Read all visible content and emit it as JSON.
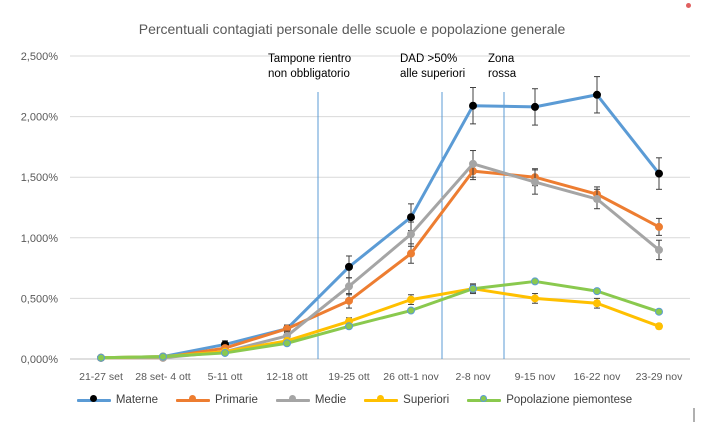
{
  "chart_data": {
    "type": "line",
    "title": "Percentuali contagiati personale delle scuole e popolazione generale",
    "xlabel": "",
    "ylabel": "",
    "ylim": [
      0,
      2.5
    ],
    "yticks": [
      "0,000%",
      "0,500%",
      "1,000%",
      "1,500%",
      "2,000%",
      "2,500%"
    ],
    "categories": [
      "21-27 set",
      "28 set- 4 ott",
      "5-11 ott",
      "12-18 ott",
      "19-25 ott",
      "26 ott-1 nov",
      "2-8 nov",
      "9-15 nov",
      "16-22 nov",
      "23-29 nov"
    ],
    "grid": "horizontal",
    "legend": "bottom",
    "series": [
      {
        "name": "Materne",
        "color": "#5b9bd5",
        "marker": "#000000",
        "values": [
          0.01,
          0.02,
          0.12,
          0.25,
          0.76,
          1.17,
          2.09,
          2.08,
          2.18,
          1.53
        ],
        "errors": [
          0,
          0,
          0.03,
          0.03,
          0.09,
          0.11,
          0.15,
          0.15,
          0.15,
          0.13
        ]
      },
      {
        "name": "Primarie",
        "color": "#ed7d31",
        "marker": "#ed7d31",
        "values": [
          0.01,
          0.01,
          0.09,
          0.25,
          0.48,
          0.87,
          1.55,
          1.5,
          1.36,
          1.09
        ],
        "errors": [
          0,
          0,
          0.02,
          0.03,
          0.06,
          0.08,
          0.07,
          0.07,
          0.06,
          0.07
        ]
      },
      {
        "name": "Medie",
        "color": "#a5a5a5",
        "marker": "#a5a5a5",
        "values": [
          0.01,
          0.01,
          0.06,
          0.19,
          0.6,
          1.03,
          1.61,
          1.46,
          1.32,
          0.9
        ],
        "errors": [
          0,
          0,
          0.02,
          0.04,
          0.07,
          0.1,
          0.11,
          0.1,
          0.08,
          0.08
        ]
      },
      {
        "name": "Superiori",
        "color": "#ffc000",
        "marker": "#ffc000",
        "values": [
          0.01,
          0.02,
          0.06,
          0.15,
          0.31,
          0.49,
          0.58,
          0.5,
          0.46,
          0.27
        ],
        "errors": [
          0,
          0,
          0.01,
          0.02,
          0.03,
          0.04,
          0.04,
          0.04,
          0.04,
          0.02
        ]
      },
      {
        "name": "Popolazione piemontese",
        "color": "#8ac94e",
        "marker": "#8ac94e",
        "values": [
          0.01,
          0.02,
          0.05,
          0.13,
          0.27,
          0.4,
          0.58,
          0.64,
          0.56,
          0.39
        ],
        "errors": [
          0,
          0,
          0,
          0,
          0,
          0,
          0.03,
          0,
          0,
          0
        ]
      }
    ],
    "annotations": [
      {
        "text_lines": [
          "Tampone rientro",
          "non obbligatorio"
        ],
        "after_category": "12-18 ott"
      },
      {
        "text_lines": [
          "DAD >50%",
          "alle superiori"
        ],
        "after_category": "26 ott-1 nov"
      },
      {
        "text_lines": [
          "Zona",
          "rossa"
        ],
        "after_category": "2-8 nov"
      }
    ],
    "colors": {
      "grid": "#d9d9d9",
      "axis": "#bfbfbf",
      "text": "#595959",
      "title": "#595959",
      "annotation_line": "#5b9bd5",
      "errorbar": "#404040"
    }
  }
}
